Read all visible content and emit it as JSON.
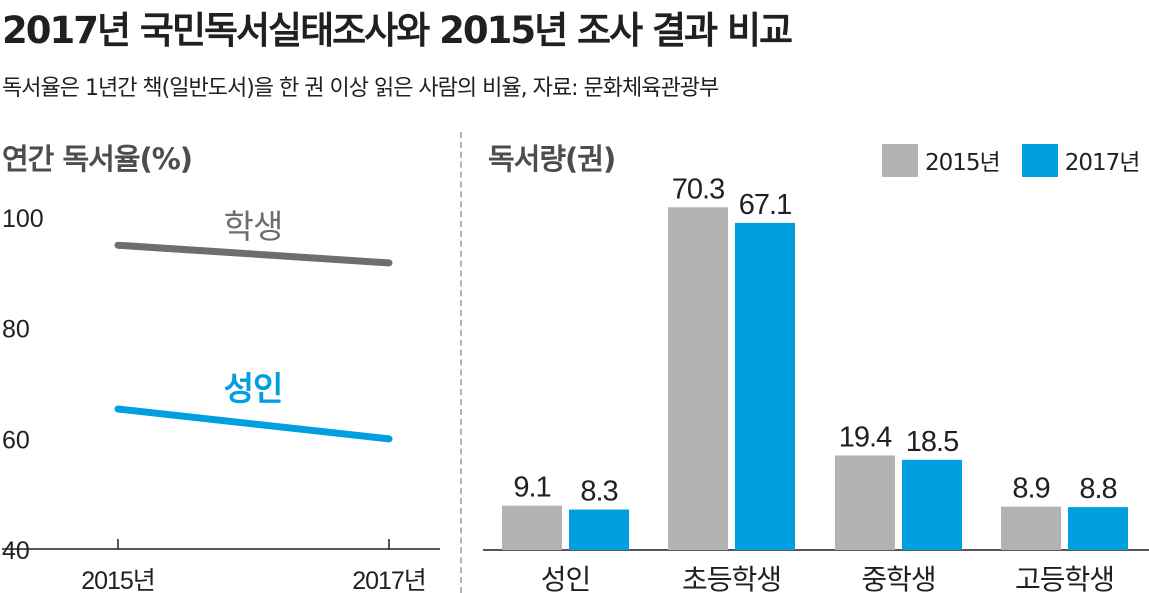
{
  "title": "2017년 국민독서실태조사와 2015년 조사 결과 비교",
  "subtitle": "독서율은 1년간 책(일반도서)을 한 권 이상 읽은 사람의 비율, 자료: 문화체육관광부",
  "colors": {
    "gray_bar": "#b3b3b3",
    "blue": "#00a0e0",
    "gray_line": "#6d6e71",
    "axis": "#231f20"
  },
  "chart_data": [
    {
      "type": "line",
      "title": "연간 독서율(%)",
      "x": [
        "2015년",
        "2017년"
      ],
      "ylim": [
        40,
        100
      ],
      "yticks": [
        40,
        60,
        80,
        100
      ],
      "series": [
        {
          "name": "학생",
          "values": [
            94.9,
            91.7
          ]
        },
        {
          "name": "성인",
          "values": [
            65.3,
            59.9
          ]
        }
      ]
    },
    {
      "type": "bar",
      "title": "독서량(권)",
      "categories": [
        "성인",
        "초등학생",
        "중학생",
        "고등학생"
      ],
      "ylim": [
        0,
        80
      ],
      "series": [
        {
          "name": "2015년",
          "values": [
            9.1,
            70.3,
            19.4,
            8.9
          ]
        },
        {
          "name": "2017년",
          "values": [
            8.3,
            67.1,
            18.5,
            8.8
          ]
        }
      ]
    }
  ]
}
